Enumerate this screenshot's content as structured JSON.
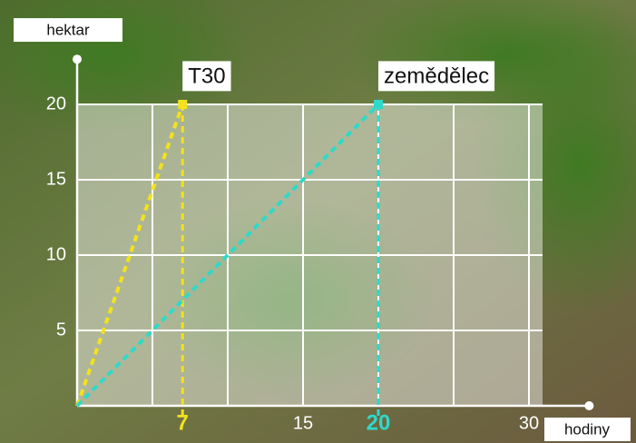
{
  "chart_data": {
    "type": "line",
    "y_label": "hektar",
    "x_label": "hodiny",
    "series": [
      {
        "name": "T30",
        "color": "#f3e21c",
        "x": [
          0,
          7
        ],
        "values": [
          0,
          20
        ]
      },
      {
        "name": "zemědělec",
        "color": "#2fd9c9",
        "x": [
          0,
          20
        ],
        "values": [
          0,
          20
        ]
      }
    ],
    "xlim": [
      0,
      34
    ],
    "ylim": [
      0,
      23
    ],
    "xticks": [
      7,
      15,
      20,
      30
    ],
    "yticks": [
      5,
      10,
      15,
      20
    ],
    "xgrid": [
      5,
      10,
      15,
      20,
      25,
      30
    ],
    "grid": true
  }
}
